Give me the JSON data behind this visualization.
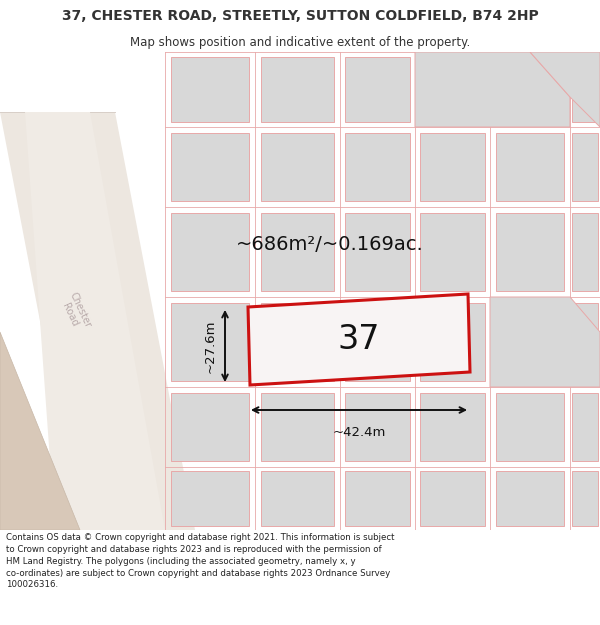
{
  "title": "37, CHESTER ROAD, STREETLY, SUTTON COLDFIELD, B74 2HP",
  "subtitle": "Map shows position and indicative extent of the property.",
  "footer": "Contains OS data © Crown copyright and database right 2021. This information is subject to Crown copyright and database rights 2023 and is reproduced with the permission of HM Land Registry. The polygons (including the associated geometry, namely x, y co-ordinates) are subject to Crown copyright and database rights 2023 Ordnance Survey 100026316.",
  "area_label": "~686m²/~0.169ac.",
  "width_label": "~42.4m",
  "height_label": "~27.6m",
  "number_label": "37",
  "map_bg": "#f0ece8",
  "road_stripe_light": "#f5f2ef",
  "road_stripe_dark": "#e8e0d8",
  "road_edge_color": "#d8cfc8",
  "building_fill": "#d8d8d8",
  "building_edge": "#e8a8a8",
  "plot37_fill": "#f8f4f4",
  "plot37_edge": "#cc1111",
  "brown_fill": "#d8c8b8",
  "road_label_color": "#b8aaaa",
  "dim_color": "#111111",
  "title_color": "#333333",
  "footer_color": "#222222",
  "title_fontsize": 10,
  "subtitle_fontsize": 8.5,
  "area_fontsize": 14,
  "number_fontsize": 24,
  "dim_fontsize": 9.5,
  "footer_fontsize": 6.2
}
